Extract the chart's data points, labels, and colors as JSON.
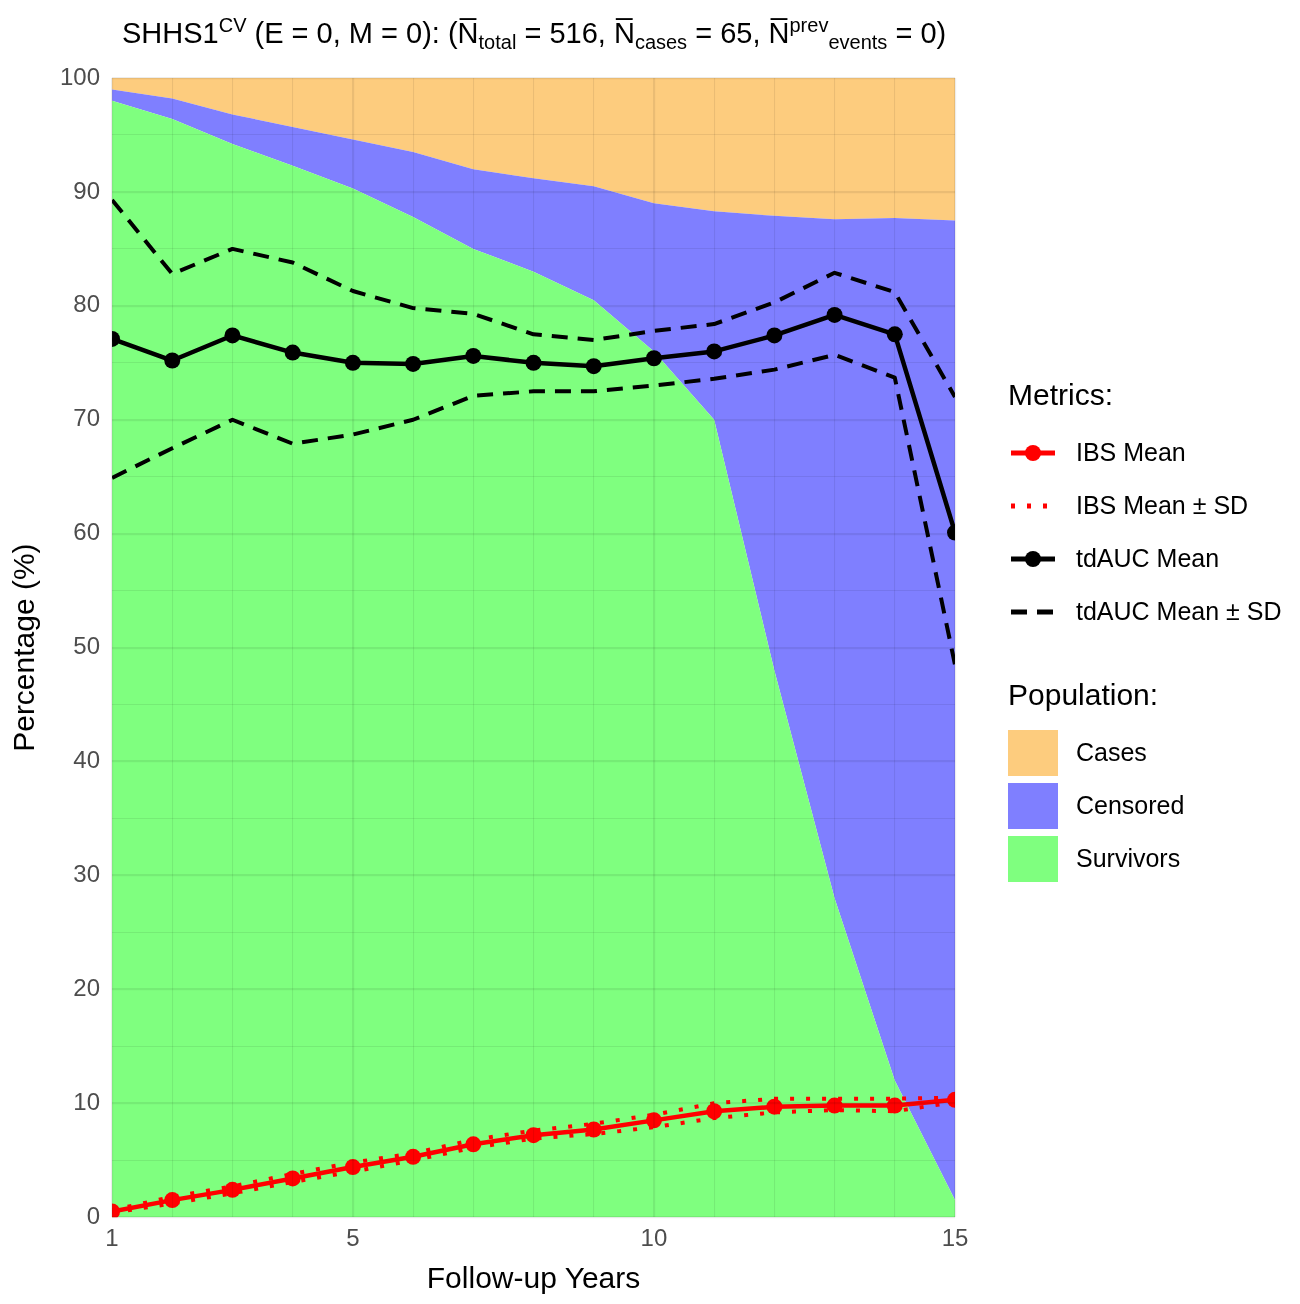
{
  "chart_data": {
    "type": "line",
    "title": "SHHS1$^{CV}$ (E = 0, M = 0): (N̅$_{total}$ = 516, N̅$_{cases}$ = 65, N̅$^{prev}$$_{events}$ = 0)",
    "xlabel": "Follow-up Years",
    "ylabel": "Percentage (%)",
    "legend_title": "Metrics:",
    "annotations": [
      "Population:"
    ],
    "x": [
      1,
      2,
      3,
      4,
      5,
      6,
      7,
      8,
      9,
      10,
      11,
      12,
      13,
      14,
      15
    ],
    "xlim": [
      1,
      15
    ],
    "xticks": [
      1,
      {
        "value": 2,
        "label": null
      },
      {
        "value": 3,
        "label": null
      },
      {
        "value": 4,
        "label": null
      },
      5,
      {
        "value": 6,
        "label": null
      },
      {
        "value": 7,
        "label": null
      },
      {
        "value": 8,
        "label": null
      },
      {
        "value": 9,
        "label": null
      },
      10,
      {
        "value": 11,
        "label": null
      },
      {
        "value": 12,
        "label": null
      },
      {
        "value": 13,
        "label": null
      },
      {
        "value": 14,
        "label": null
      },
      15
    ],
    "ylim": [
      0,
      100
    ],
    "yticks": [
      0,
      {
        "value": 5,
        "label": null
      },
      10,
      {
        "value": 15,
        "label": null
      },
      20,
      {
        "value": 25,
        "label": null
      },
      30,
      {
        "value": 35,
        "label": null
      },
      40,
      {
        "value": 45,
        "label": null
      },
      50,
      {
        "value": 55,
        "label": null
      },
      60,
      {
        "value": 65,
        "label": null
      },
      70,
      {
        "value": 75,
        "label": null
      },
      80,
      {
        "value": 85,
        "label": null
      },
      90,
      {
        "value": 95,
        "label": null
      },
      100
    ],
    "grid": true,
    "legend": "right",
    "stacked": true,
    "series": [
      {
        "name": "Survivors",
        "type": "area",
        "color": "#7fff7f",
        "values": [
          98,
          96.4,
          94.2,
          92.3,
          90.3,
          87.8,
          85,
          83,
          80.5,
          76,
          70,
          48,
          28,
          12,
          1.5
        ]
      },
      {
        "name": "Censored",
        "type": "area",
        "color": "#7f7fff",
        "values": [
          1,
          1.8,
          2.6,
          3.4,
          4.3,
          5.7,
          7,
          8.2,
          10,
          13,
          18.3,
          39.9,
          59.6,
          75.7,
          86
        ]
      },
      {
        "name": "Cases",
        "type": "area",
        "color": "#fdcc7e",
        "values": [
          1,
          1.8,
          3.2,
          4.3,
          5.4,
          6.5,
          8,
          8.8,
          9.5,
          11,
          11.7,
          12.1,
          12.4,
          12.3,
          12.5
        ]
      },
      {
        "name": "IBS Mean",
        "type": "line",
        "color": "#ff0000",
        "marker": "circle",
        "line_style": "solid",
        "values": [
          0.5,
          1.5,
          2.4,
          3.4,
          4.4,
          5.3,
          6.4,
          7.2,
          7.7,
          8.5,
          9.3,
          9.7,
          9.8,
          9.8,
          10.3
        ]
      },
      {
        "name": "IBS Mean ± SD",
        "type": "line",
        "color": "#ff0000",
        "marker": "none",
        "line_style": "dotted",
        "values": [
          0.6,
          1.8,
          2.7,
          3.8,
          4.8,
          5.6,
          6.8,
          7.6,
          8.2,
          9.0,
          10.0,
          10.4,
          10.4,
          10.4,
          10.5
        ]
      },
      {
        "type": "line",
        "color": "#ff0000",
        "marker": "none",
        "line_style": "dotted",
        "values": [
          0.4,
          1.2,
          2.1,
          3.1,
          4.0,
          5.0,
          6.1,
          6.9,
          7.3,
          7.9,
          8.7,
          9.2,
          9.4,
          9.3,
          10.1
        ]
      },
      {
        "name": "tdAUC Mean",
        "type": "line",
        "color": "#000000",
        "marker": "circle",
        "line_style": "solid",
        "values": [
          77.1,
          75.2,
          77.4,
          75.9,
          75.0,
          74.9,
          75.6,
          75.0,
          74.7,
          75.4,
          76.0,
          77.4,
          79.2,
          77.5,
          60.1
        ]
      },
      {
        "name": "tdAUC Mean ± SD",
        "type": "line",
        "color": "#000000",
        "marker": "none",
        "line_style": "dashed",
        "values": [
          89.3,
          82.8,
          85.0,
          83.8,
          81.3,
          79.8,
          79.3,
          77.5,
          77.0,
          77.8,
          78.4,
          80.3,
          82.9,
          81.2,
          72.0
        ]
      },
      {
        "type": "line",
        "color": "#000000",
        "marker": "none",
        "line_style": "dashed",
        "values": [
          64.9,
          67.5,
          70.0,
          67.9,
          68.7,
          70.0,
          72.1,
          72.5,
          72.5,
          73.0,
          73.6,
          74.4,
          75.7,
          73.7,
          48.5
        ]
      }
    ]
  }
}
